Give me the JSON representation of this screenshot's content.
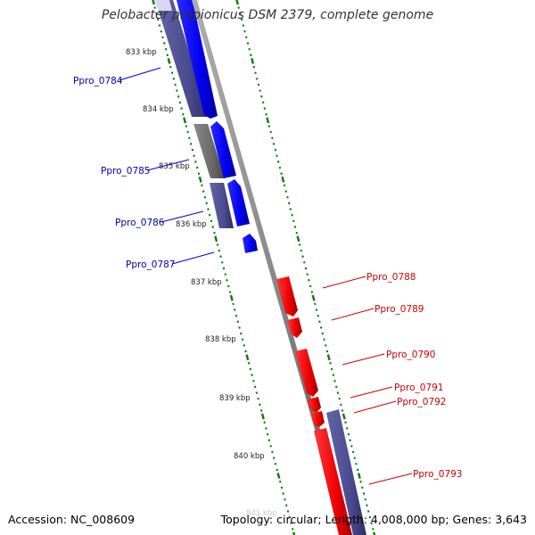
{
  "title": "Pelobacter propionicus DSM 2379, complete genome",
  "footer": {
    "accession": "Accession: NC_008609",
    "summary": "Topology: circular; Length: 4,008,000 bp; Genes: 3,643"
  },
  "colors": {
    "forward_gene": "#0000ff",
    "reverse_gene": "#ff0000",
    "cds_purple": "#4b4b8f",
    "cds_gray": "#6e6e6e",
    "backbone": "#8a8a8a",
    "tick_dots": "#0a7a0a",
    "forward_label": "#0000aa",
    "reverse_label": "#cc0000"
  },
  "ticks": [
    {
      "label": "833 kbp"
    },
    {
      "label": "834 kbp"
    },
    {
      "label": "835 kbp"
    },
    {
      "label": "836 kbp"
    },
    {
      "label": "837 kbp"
    },
    {
      "label": "838 kbp"
    },
    {
      "label": "839 kbp"
    },
    {
      "label": "840 kbp"
    },
    {
      "label": "841 kbp"
    }
  ],
  "genes_forward": [
    {
      "label": "Ppro_0784"
    },
    {
      "label": "Ppro_0785"
    },
    {
      "label": "Ppro_0786"
    },
    {
      "label": "Ppro_0787"
    }
  ],
  "genes_reverse": [
    {
      "label": "Ppro_0788"
    },
    {
      "label": "Ppro_0789"
    },
    {
      "label": "Ppro_0790"
    },
    {
      "label": "Ppro_0791"
    },
    {
      "label": "Ppro_0792"
    },
    {
      "label": "Ppro_0793"
    }
  ]
}
